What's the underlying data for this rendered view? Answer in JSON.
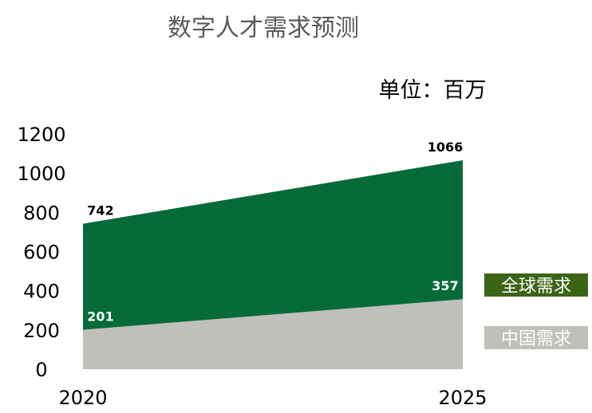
{
  "chart_data": {
    "type": "area",
    "title": "数字人才需求预测",
    "unit_label": "单位：百万",
    "x": [
      "2020",
      "2025"
    ],
    "ylim": [
      0,
      1200
    ],
    "y_ticks": [
      0,
      200,
      400,
      600,
      800,
      1000,
      1200
    ],
    "grid": false,
    "legend_placement": "right",
    "series": [
      {
        "name": "全球需求",
        "values": [
          742,
          1066
        ],
        "labels": [
          "742",
          "1066"
        ],
        "color": "#066B38",
        "legend_color": "#3C6417",
        "label_color": "#000000"
      },
      {
        "name": "中国需求",
        "values": [
          201,
          357
        ],
        "labels": [
          "201",
          "357"
        ],
        "color": "#BFBFBB",
        "legend_color": "#BFBFBB",
        "label_color": "#ffffff"
      }
    ]
  }
}
